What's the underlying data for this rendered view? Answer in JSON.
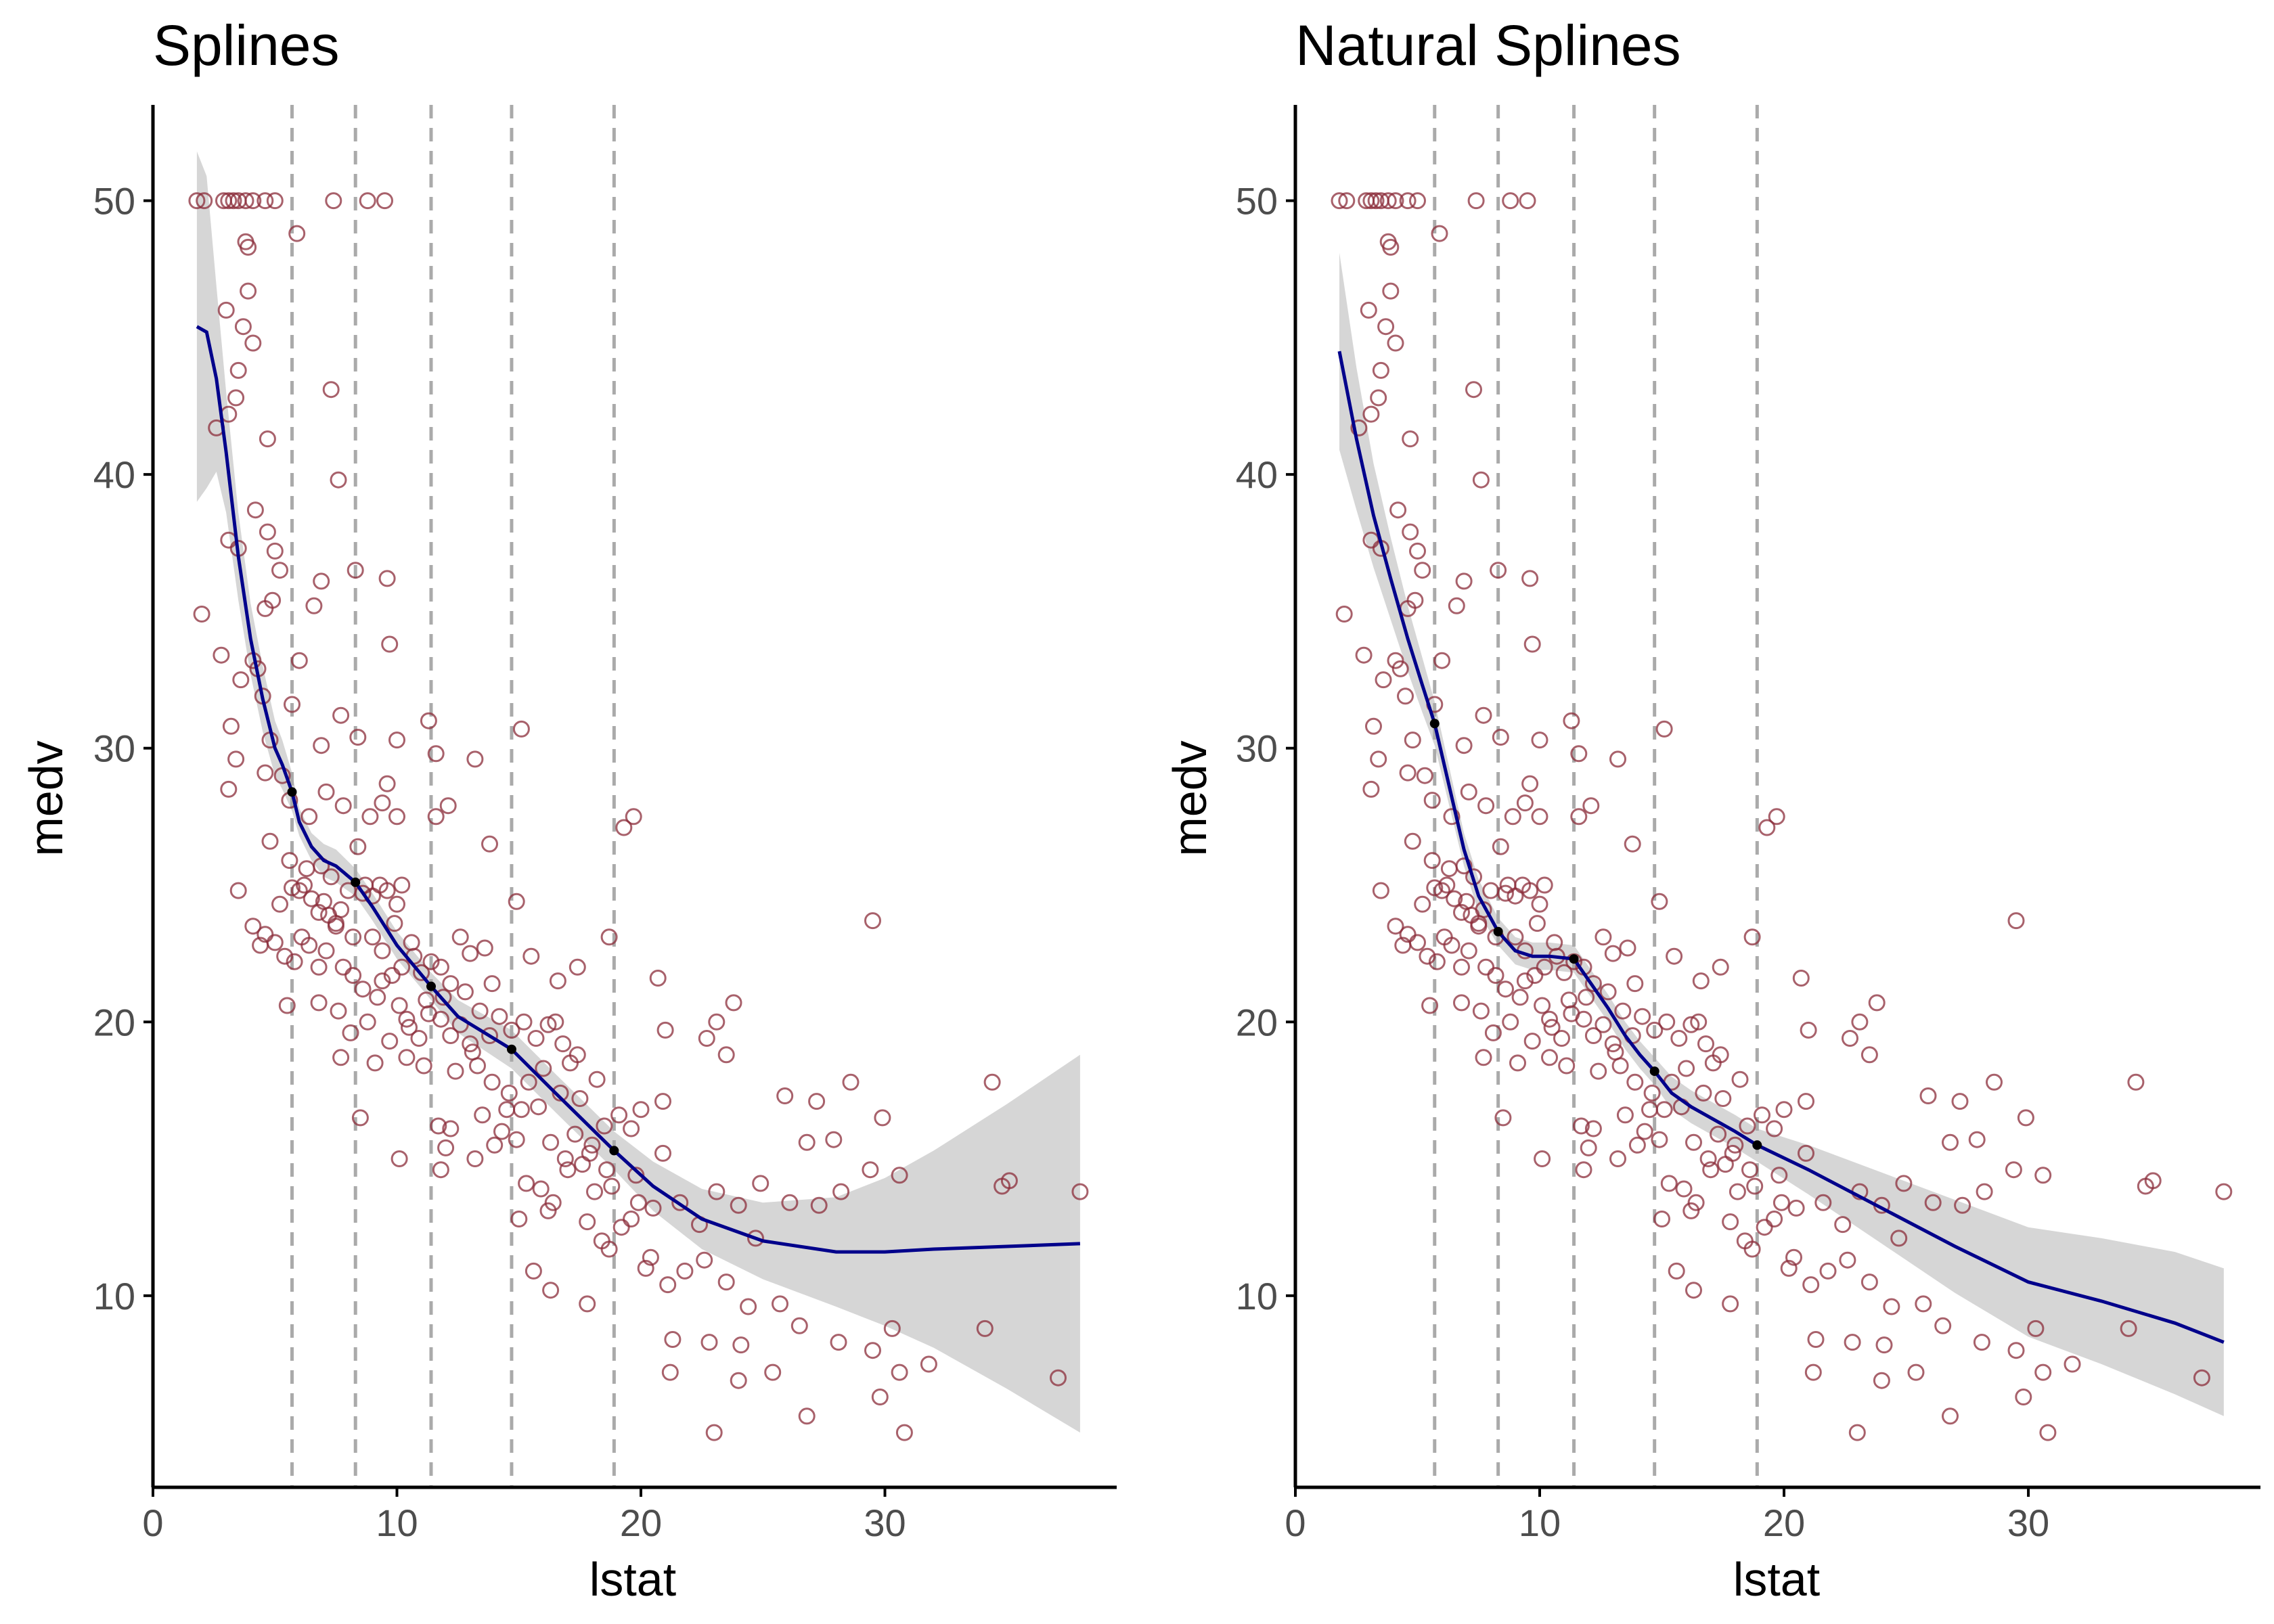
{
  "figure": {
    "colors": {
      "points": "#8b2c3a",
      "fit_line": "#00008b",
      "ribbon": "#bdbdbd",
      "knot_line": "#aaaaaa",
      "axis": "#000000",
      "tick_text": "#4d4d4d"
    }
  },
  "chart_data": [
    {
      "type": "scatter",
      "title": "Splines",
      "xlabel": "lstat",
      "ylabel": "medv",
      "xlim": [
        0,
        39.5
      ],
      "ylim": [
        3,
        53.5
      ],
      "xticks": [
        0,
        10,
        20,
        30
      ],
      "yticks": [
        10,
        20,
        30,
        40,
        50
      ],
      "grid": false,
      "legend": "none",
      "knots": [
        5.7,
        8.3,
        11.4,
        14.7,
        18.9
      ],
      "points_seed": 11,
      "points": [
        [
          1.8,
          50
        ],
        [
          2.1,
          50
        ],
        [
          2.9,
          50
        ],
        [
          3.1,
          50
        ],
        [
          3.3,
          50
        ],
        [
          3.5,
          50
        ],
        [
          3.8,
          50
        ],
        [
          4.1,
          50
        ],
        [
          4.6,
          50
        ],
        [
          5.0,
          50
        ],
        [
          7.4,
          50
        ],
        [
          8.8,
          50
        ],
        [
          9.5,
          50
        ],
        [
          5.9,
          48.8
        ],
        [
          3.8,
          48.5
        ],
        [
          3.9,
          48.3
        ],
        [
          3.9,
          46.7
        ],
        [
          3.0,
          46.0
        ],
        [
          3.7,
          45.4
        ],
        [
          4.1,
          44.8
        ],
        [
          3.5,
          43.8
        ],
        [
          7.3,
          43.1
        ],
        [
          3.4,
          42.8
        ],
        [
          4.7,
          41.3
        ],
        [
          2.6,
          41.7
        ],
        [
          3.1,
          42.2
        ],
        [
          4.2,
          38.7
        ],
        [
          7.6,
          39.8
        ],
        [
          4.7,
          37.9
        ],
        [
          5.0,
          37.2
        ],
        [
          3.1,
          37.6
        ],
        [
          3.5,
          37.3
        ],
        [
          5.2,
          36.5
        ],
        [
          8.3,
          36.5
        ],
        [
          6.9,
          36.1
        ],
        [
          9.6,
          36.2
        ],
        [
          2.0,
          34.9
        ],
        [
          4.9,
          35.4
        ],
        [
          4.6,
          35.1
        ],
        [
          6.6,
          35.2
        ],
        [
          2.8,
          33.4
        ],
        [
          4.1,
          33.2
        ],
        [
          4.3,
          32.9
        ],
        [
          6.0,
          33.2
        ],
        [
          9.7,
          33.8
        ],
        [
          3.6,
          32.5
        ],
        [
          4.5,
          31.9
        ],
        [
          5.7,
          31.6
        ],
        [
          3.2,
          30.8
        ],
        [
          4.8,
          30.3
        ],
        [
          6.9,
          30.1
        ],
        [
          7.7,
          31.2
        ],
        [
          8.4,
          30.4
        ],
        [
          10.0,
          30.3
        ],
        [
          11.3,
          31.0
        ],
        [
          3.4,
          29.6
        ],
        [
          4.6,
          29.1
        ],
        [
          5.3,
          29.0
        ],
        [
          7.1,
          28.4
        ],
        [
          7.8,
          27.9
        ],
        [
          9.4,
          28.0
        ],
        [
          11.6,
          29.8
        ],
        [
          13.2,
          29.6
        ],
        [
          3.1,
          28.5
        ],
        [
          5.6,
          28.1
        ],
        [
          6.4,
          27.5
        ],
        [
          8.9,
          27.5
        ],
        [
          9.6,
          28.7
        ],
        [
          10.0,
          27.5
        ],
        [
          11.6,
          27.5
        ],
        [
          12.1,
          27.9
        ],
        [
          19.3,
          27.1
        ],
        [
          19.7,
          27.5
        ],
        [
          3.5,
          24.8
        ],
        [
          4.8,
          26.6
        ],
        [
          5.2,
          24.3
        ],
        [
          5.6,
          25.9
        ],
        [
          6.0,
          24.8
        ],
        [
          6.2,
          25.0
        ],
        [
          6.5,
          24.5
        ],
        [
          6.8,
          24.0
        ],
        [
          7.0,
          24.4
        ],
        [
          7.2,
          23.9
        ],
        [
          7.5,
          23.6
        ],
        [
          7.7,
          24.1
        ],
        [
          8.0,
          24.8
        ],
        [
          8.4,
          26.4
        ],
        [
          8.7,
          25.0
        ],
        [
          9.0,
          24.6
        ],
        [
          9.3,
          25.0
        ],
        [
          9.6,
          24.8
        ],
        [
          10.0,
          24.3
        ],
        [
          10.2,
          25.0
        ],
        [
          4.1,
          23.5
        ],
        [
          4.6,
          23.2
        ],
        [
          5.0,
          22.9
        ],
        [
          5.4,
          22.4
        ],
        [
          5.8,
          22.2
        ],
        [
          6.1,
          23.1
        ],
        [
          6.4,
          22.8
        ],
        [
          6.8,
          22.0
        ],
        [
          7.1,
          22.6
        ],
        [
          7.5,
          23.5
        ],
        [
          7.8,
          22.0
        ],
        [
          8.2,
          21.7
        ],
        [
          8.6,
          21.2
        ],
        [
          9.0,
          23.1
        ],
        [
          9.4,
          22.6
        ],
        [
          9.8,
          21.7
        ],
        [
          10.2,
          22.0
        ],
        [
          10.6,
          22.9
        ],
        [
          11.0,
          21.8
        ],
        [
          11.4,
          22.2
        ],
        [
          11.8,
          22.0
        ],
        [
          12.2,
          21.4
        ],
        [
          12.6,
          23.1
        ],
        [
          13.0,
          22.5
        ],
        [
          13.6,
          22.7
        ],
        [
          4.4,
          22.8
        ],
        [
          5.5,
          20.6
        ],
        [
          6.8,
          20.7
        ],
        [
          7.6,
          20.4
        ],
        [
          8.1,
          19.6
        ],
        [
          8.8,
          20.0
        ],
        [
          9.2,
          20.9
        ],
        [
          9.7,
          19.3
        ],
        [
          10.1,
          20.6
        ],
        [
          10.5,
          19.8
        ],
        [
          10.9,
          19.4
        ],
        [
          11.3,
          20.3
        ],
        [
          11.8,
          20.1
        ],
        [
          12.2,
          19.5
        ],
        [
          12.6,
          19.9
        ],
        [
          13.0,
          19.2
        ],
        [
          13.4,
          20.4
        ],
        [
          13.8,
          19.5
        ],
        [
          14.2,
          20.2
        ],
        [
          14.7,
          19.7
        ],
        [
          15.2,
          20.0
        ],
        [
          15.7,
          19.4
        ],
        [
          16.2,
          19.9
        ],
        [
          16.8,
          19.2
        ],
        [
          17.4,
          18.8
        ],
        [
          7.7,
          18.7
        ],
        [
          9.1,
          18.5
        ],
        [
          10.4,
          18.7
        ],
        [
          11.1,
          18.4
        ],
        [
          12.4,
          18.2
        ],
        [
          13.1,
          18.9
        ],
        [
          13.9,
          17.8
        ],
        [
          14.6,
          17.4
        ],
        [
          15.4,
          17.8
        ],
        [
          16.0,
          18.3
        ],
        [
          16.7,
          17.4
        ],
        [
          17.5,
          17.2
        ],
        [
          18.2,
          17.9
        ],
        [
          19.1,
          16.6
        ],
        [
          8.5,
          16.5
        ],
        [
          11.7,
          16.2
        ],
        [
          12.2,
          16.1
        ],
        [
          13.5,
          16.6
        ],
        [
          14.5,
          16.8
        ],
        [
          15.1,
          16.8
        ],
        [
          16.3,
          15.6
        ],
        [
          16.9,
          15.0
        ],
        [
          17.3,
          15.9
        ],
        [
          17.9,
          15.2
        ],
        [
          18.6,
          14.6
        ],
        [
          19.6,
          16.1
        ],
        [
          20.0,
          16.8
        ],
        [
          20.9,
          17.1
        ],
        [
          10.1,
          15.0
        ],
        [
          12.0,
          15.4
        ],
        [
          13.2,
          15.0
        ],
        [
          14.0,
          15.5
        ],
        [
          14.9,
          15.7
        ],
        [
          15.3,
          14.1
        ],
        [
          15.9,
          13.9
        ],
        [
          16.4,
          13.4
        ],
        [
          17.0,
          14.6
        ],
        [
          17.6,
          14.8
        ],
        [
          18.1,
          13.8
        ],
        [
          18.8,
          14.0
        ],
        [
          19.8,
          14.4
        ],
        [
          20.9,
          15.2
        ],
        [
          11.8,
          14.6
        ],
        [
          15.0,
          12.8
        ],
        [
          16.2,
          13.1
        ],
        [
          17.8,
          12.7
        ],
        [
          18.4,
          12.0
        ],
        [
          19.6,
          12.8
        ],
        [
          20.5,
          13.2
        ],
        [
          21.6,
          13.4
        ],
        [
          22.4,
          12.6
        ],
        [
          23.1,
          13.8
        ],
        [
          24.0,
          13.3
        ],
        [
          24.9,
          14.1
        ],
        [
          15.6,
          10.9
        ],
        [
          16.3,
          10.2
        ],
        [
          17.8,
          9.7
        ],
        [
          18.7,
          11.7
        ],
        [
          20.2,
          11.0
        ],
        [
          21.1,
          10.4
        ],
        [
          21.8,
          10.9
        ],
        [
          22.6,
          11.3
        ],
        [
          23.5,
          10.5
        ],
        [
          24.4,
          9.6
        ],
        [
          25.7,
          9.7
        ],
        [
          21.3,
          8.4
        ],
        [
          22.8,
          8.3
        ],
        [
          24.1,
          8.2
        ],
        [
          26.5,
          8.9
        ],
        [
          28.1,
          8.3
        ],
        [
          29.5,
          8.0
        ],
        [
          30.3,
          8.8
        ],
        [
          23.0,
          5.0
        ],
        [
          26.8,
          5.6
        ],
        [
          30.8,
          5.0
        ],
        [
          29.8,
          6.3
        ],
        [
          25.4,
          7.2
        ],
        [
          24.0,
          6.9
        ],
        [
          21.2,
          7.2
        ],
        [
          31.8,
          7.5
        ],
        [
          30.6,
          7.2
        ],
        [
          37.1,
          7.0
        ],
        [
          20.7,
          21.6
        ],
        [
          21.0,
          19.7
        ],
        [
          22.7,
          19.4
        ],
        [
          23.1,
          20.0
        ],
        [
          23.8,
          20.7
        ],
        [
          23.5,
          18.8
        ],
        [
          25.9,
          17.3
        ],
        [
          27.2,
          17.1
        ],
        [
          27.9,
          15.7
        ],
        [
          28.6,
          17.8
        ],
        [
          29.9,
          16.5
        ],
        [
          26.8,
          15.6
        ],
        [
          24.7,
          12.1
        ],
        [
          26.1,
          13.4
        ],
        [
          27.3,
          13.3
        ],
        [
          28.2,
          13.8
        ],
        [
          29.4,
          14.6
        ],
        [
          30.6,
          14.4
        ],
        [
          34.4,
          17.8
        ],
        [
          34.8,
          14.0
        ],
        [
          35.1,
          14.2
        ],
        [
          34.1,
          8.8
        ],
        [
          38.0,
          13.8
        ],
        [
          29.5,
          23.7
        ],
        [
          13.8,
          26.5
        ],
        [
          15.1,
          30.7
        ],
        [
          18.7,
          23.1
        ],
        [
          17.4,
          22.0
        ],
        [
          16.6,
          21.5
        ],
        [
          15.5,
          22.4
        ],
        [
          14.9,
          24.4
        ],
        [
          13.9,
          21.4
        ],
        [
          12.8,
          21.1
        ],
        [
          11.2,
          20.8
        ],
        [
          10.4,
          20.1
        ],
        [
          9.4,
          21.5
        ],
        [
          8.6,
          24.7
        ],
        [
          6.9,
          25.7
        ],
        [
          5.7,
          24.9
        ],
        [
          6.3,
          25.6
        ],
        [
          7.3,
          25.3
        ],
        [
          8.2,
          23.1
        ],
        [
          9.9,
          23.6
        ],
        [
          10.7,
          22.4
        ],
        [
          11.9,
          20.9
        ],
        [
          13.3,
          18.4
        ],
        [
          14.3,
          16.0
        ],
        [
          15.8,
          16.9
        ],
        [
          16.5,
          20.0
        ],
        [
          17.1,
          18.5
        ],
        [
          18.0,
          15.5
        ],
        [
          18.5,
          16.2
        ],
        [
          19.2,
          12.5
        ],
        [
          19.9,
          13.4
        ],
        [
          20.4,
          11.4
        ]
      ],
      "fit_x": [
        1.8,
        2.2,
        2.6,
        3.0,
        3.5,
        4.0,
        4.5,
        5.0,
        5.3,
        5.7,
        6.0,
        6.5,
        7.0,
        7.5,
        8.3,
        9.0,
        10.0,
        11.4,
        12.5,
        14.7,
        16.5,
        18.9,
        20.5,
        22.5,
        25.0,
        28.0,
        30.0,
        32.0,
        35.0,
        38.0
      ],
      "fit_y": [
        45.4,
        45.2,
        43.5,
        40.8,
        37.0,
        34.0,
        31.8,
        30.0,
        29.4,
        28.4,
        27.3,
        26.4,
        25.9,
        25.7,
        25.1,
        24.2,
        22.8,
        21.3,
        20.2,
        19.0,
        17.4,
        15.3,
        14.0,
        12.8,
        12.0,
        11.6,
        11.6,
        11.7,
        11.8,
        11.9
      ],
      "fit_lower": [
        39.0,
        39.5,
        40.1,
        38.6,
        35.4,
        32.7,
        30.6,
        29.0,
        28.5,
        27.7,
        26.8,
        25.9,
        25.3,
        25.1,
        24.6,
        23.7,
        22.3,
        20.8,
        19.6,
        18.3,
        16.7,
        14.6,
        13.1,
        11.7,
        10.6,
        9.6,
        8.9,
        8.1,
        6.6,
        5.0
      ],
      "fit_upper": [
        51.8,
        50.9,
        46.9,
        43.0,
        38.6,
        35.3,
        33.0,
        31.0,
        30.3,
        29.1,
        27.8,
        26.9,
        26.5,
        26.3,
        25.6,
        24.7,
        23.3,
        21.8,
        20.8,
        19.7,
        18.1,
        16.0,
        14.9,
        13.9,
        13.4,
        13.6,
        14.3,
        15.3,
        17.0,
        18.8
      ],
      "knot_fit_y": [
        28.4,
        25.1,
        21.3,
        19.0,
        15.3
      ]
    },
    {
      "type": "scatter",
      "title": "Natural Splines",
      "xlabel": "lstat",
      "ylabel": "medv",
      "xlim": [
        0,
        39.5
      ],
      "ylim": [
        3,
        53.5
      ],
      "xticks": [
        0,
        10,
        20,
        30
      ],
      "yticks": [
        10,
        20,
        30,
        40,
        50
      ],
      "grid": false,
      "legend": "none",
      "knots": [
        5.7,
        8.3,
        11.4,
        14.7,
        18.9
      ],
      "points_seed": 11,
      "points": "same-as-panel-1",
      "fit_x": [
        1.8,
        2.5,
        3.2,
        3.9,
        4.6,
        5.2,
        5.7,
        6.3,
        6.9,
        7.5,
        8.3,
        9.0,
        9.7,
        10.4,
        11.4,
        12.1,
        12.8,
        13.5,
        14.1,
        14.7,
        15.4,
        16.2,
        17.0,
        18.0,
        18.9,
        21.0,
        24.0,
        27.0,
        30.0,
        33.0,
        36.0,
        38.0
      ],
      "fit_y": [
        44.5,
        41.3,
        38.5,
        36.2,
        34.0,
        32.3,
        30.9,
        28.6,
        26.3,
        24.6,
        23.3,
        22.6,
        22.4,
        22.4,
        22.3,
        21.4,
        20.5,
        19.5,
        18.8,
        18.2,
        17.4,
        16.9,
        16.5,
        16.0,
        15.5,
        14.6,
        13.2,
        11.8,
        10.5,
        9.8,
        9.0,
        8.3
      ],
      "fit_lower": [
        40.9,
        38.7,
        36.6,
        34.7,
        32.8,
        31.3,
        30.1,
        27.9,
        25.7,
        24.0,
        22.8,
        22.1,
        21.9,
        21.9,
        21.8,
        20.9,
        20.0,
        19.0,
        18.3,
        17.7,
        16.8,
        16.3,
        15.9,
        15.4,
        14.9,
        13.7,
        11.9,
        10.1,
        8.5,
        7.5,
        6.4,
        5.6
      ],
      "fit_upper": [
        48.1,
        43.9,
        40.4,
        37.7,
        35.2,
        33.3,
        31.7,
        29.3,
        26.9,
        25.2,
        23.8,
        23.1,
        22.9,
        22.9,
        22.8,
        21.9,
        21.0,
        20.0,
        19.3,
        18.7,
        18.0,
        17.5,
        17.1,
        16.6,
        16.1,
        15.5,
        14.5,
        13.5,
        12.5,
        12.1,
        11.6,
        11.0
      ],
      "knot_fit_y": [
        30.9,
        23.3,
        22.3,
        18.2,
        15.5
      ]
    }
  ]
}
